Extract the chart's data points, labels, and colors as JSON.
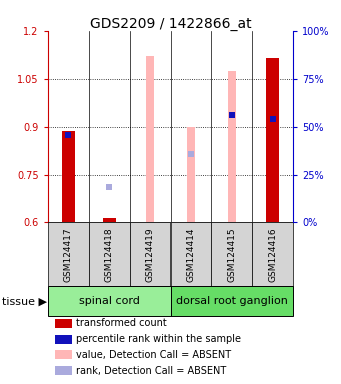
{
  "title": "GDS2209 / 1422866_at",
  "samples": [
    "GSM124417",
    "GSM124418",
    "GSM124419",
    "GSM124414",
    "GSM124415",
    "GSM124416"
  ],
  "ylim_left": [
    0.6,
    1.2
  ],
  "ylim_right": [
    0,
    100
  ],
  "yticks_left": [
    0.6,
    0.75,
    0.9,
    1.05,
    1.2
  ],
  "yticks_right": [
    0,
    25,
    50,
    75,
    100
  ],
  "ytick_labels_right": [
    "0%",
    "25%",
    "50%",
    "75%",
    "100%"
  ],
  "red_bars_top": [
    0.885,
    0.615,
    0.6,
    0.6,
    0.6,
    1.115
  ],
  "blue_squares_y": [
    0.875,
    null,
    null,
    null,
    0.935,
    0.925
  ],
  "pink_bars_top": [
    0.6,
    0.615,
    1.12,
    0.9,
    1.075,
    0.6
  ],
  "light_blue_squares_y": [
    null,
    0.71,
    null,
    0.815,
    null,
    null
  ],
  "tissue_groups": [
    {
      "label": "spinal cord",
      "span": [
        0,
        3
      ],
      "color": "#99EE99"
    },
    {
      "label": "dorsal root ganglion",
      "span": [
        3,
        6
      ],
      "color": "#66DD66"
    }
  ],
  "red_color": "#CC0000",
  "blue_color": "#1111BB",
  "pink_color": "#FFB6B6",
  "light_blue_color": "#AAAADD",
  "bg_color": "#FFFFFF",
  "left_axis_color": "#CC0000",
  "right_axis_color": "#0000CC",
  "sample_box_color": "#D4D4D4",
  "legend_items": [
    {
      "color": "#CC0000",
      "label": "transformed count"
    },
    {
      "color": "#1111BB",
      "label": "percentile rank within the sample"
    },
    {
      "color": "#FFB6B6",
      "label": "value, Detection Call = ABSENT"
    },
    {
      "color": "#AAAADD",
      "label": "rank, Detection Call = ABSENT"
    }
  ],
  "tissue_label": "tissue",
  "title_fontsize": 10,
  "tick_fontsize": 7,
  "label_fontsize": 7,
  "legend_fontsize": 7,
  "tissue_fontsize": 8,
  "sample_fontsize": 6.5
}
